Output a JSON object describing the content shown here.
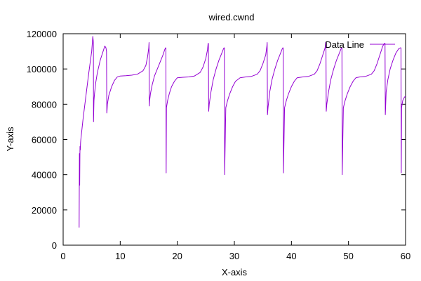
{
  "chart_data": {
    "type": "line",
    "title": "wired.cwnd",
    "xlabel": "X-axis",
    "ylabel": "Y-axis",
    "xlim": [
      0,
      60
    ],
    "ylim": [
      0,
      120000
    ],
    "x_ticks": [
      "0",
      "10",
      "20",
      "30",
      "40",
      "50",
      "60"
    ],
    "y_ticks": [
      "0",
      "20000",
      "40000",
      "60000",
      "80000",
      "100000",
      "120000"
    ],
    "x_tick_values": [
      0,
      10,
      20,
      30,
      40,
      50,
      60
    ],
    "y_tick_values": [
      0,
      20000,
      40000,
      60000,
      80000,
      100000,
      120000
    ],
    "grid": false,
    "legend_position": "top-right",
    "series": [
      {
        "name": "Data Line",
        "color": "#9400d3",
        "x": [
          2.8,
          2.85,
          2.9,
          2.95,
          3.0,
          3.05,
          3.1,
          3.5,
          4.0,
          4.5,
          5.0,
          5.2,
          5.3,
          5.32,
          5.4,
          5.5,
          5.7,
          6.0,
          6.5,
          7.0,
          7.3,
          7.5,
          7.6,
          7.65,
          7.7,
          7.75,
          8.0,
          8.5,
          9.0,
          9.5,
          10.0,
          11.0,
          12.0,
          13.0,
          14.0,
          14.5,
          14.8,
          15.0,
          15.05,
          15.1,
          15.15,
          15.3,
          15.6,
          16.0,
          16.5,
          17.0,
          17.5,
          17.8,
          17.95,
          18.0,
          18.05,
          18.1,
          18.3,
          18.6,
          19.0,
          19.5,
          20.0,
          21.0,
          22.0,
          23.0,
          24.0,
          24.5,
          25.0,
          25.3,
          25.4,
          25.45,
          25.5,
          25.6,
          25.9,
          26.3,
          26.8,
          27.3,
          27.8,
          28.1,
          28.2,
          28.25,
          28.3,
          28.5,
          28.8,
          29.2,
          29.7,
          30.2,
          31.0,
          32.0,
          33.0,
          34.0,
          34.5,
          35.0,
          35.5,
          35.7,
          35.75,
          35.8,
          35.9,
          36.2,
          36.6,
          37.1,
          37.6,
          38.1,
          38.4,
          38.5,
          38.55,
          38.6,
          38.8,
          39.1,
          39.5,
          40.0,
          40.5,
          41.0,
          42.0,
          43.0,
          44.0,
          44.5,
          45.0,
          45.5,
          45.9,
          46.0,
          46.05,
          46.1,
          46.2,
          46.5,
          46.9,
          47.4,
          47.9,
          48.4,
          48.7,
          48.8,
          48.85,
          48.9,
          49.1,
          49.4,
          49.8,
          50.3,
          50.8,
          51.3,
          52.0,
          53.0,
          54.0,
          54.5,
          55.0,
          55.5,
          56.0,
          56.3,
          56.4,
          56.45,
          56.5,
          56.6,
          56.9,
          57.3,
          57.8,
          58.3,
          58.8,
          59.1,
          59.2,
          59.25,
          59.3,
          59.5,
          59.8,
          60.0
        ],
        "y": [
          10000,
          52000,
          34000,
          56000,
          54000,
          58000,
          60000,
          72000,
          85000,
          98000,
          110000,
          118500,
          115000,
          70000,
          82000,
          86000,
          92000,
          98000,
          105000,
          110000,
          113000,
          112000,
          110000,
          75000,
          77000,
          80000,
          85000,
          90000,
          93500,
          95500,
          96000,
          96200,
          96500,
          97000,
          99000,
          102000,
          107000,
          112000,
          115000,
          79000,
          82000,
          86000,
          91000,
          96000,
          100000,
          104000,
          108000,
          111000,
          112000,
          112000,
          41000,
          78000,
          82000,
          86000,
          90000,
          93000,
          95000,
          95300,
          95500,
          96000,
          98000,
          101000,
          106000,
          111000,
          114500,
          114500,
          76000,
          80000,
          87000,
          94000,
          100000,
          105000,
          109000,
          111500,
          112000,
          112000,
          40000,
          78000,
          82000,
          86000,
          90000,
          93000,
          95000,
          95500,
          95800,
          97000,
          99000,
          103000,
          108000,
          113000,
          115000,
          74000,
          78000,
          87000,
          94000,
          100000,
          105000,
          109000,
          111500,
          112000,
          112000,
          41000,
          78000,
          82000,
          86000,
          90000,
          93000,
          95000,
          95500,
          95800,
          97000,
          99000,
          103000,
          108000,
          112000,
          115000,
          115000,
          76000,
          80000,
          87000,
          94000,
          100000,
          105000,
          109000,
          111500,
          112000,
          112000,
          40000,
          78000,
          82000,
          86000,
          90000,
          93000,
          95000,
          95500,
          95800,
          97000,
          99000,
          103000,
          108000,
          113000,
          114500,
          114500,
          74000,
          78000,
          87000,
          94000,
          100000,
          105000,
          109000,
          111500,
          112000,
          112000,
          41000,
          78000,
          82000,
          84000,
          84500
        ]
      }
    ]
  }
}
